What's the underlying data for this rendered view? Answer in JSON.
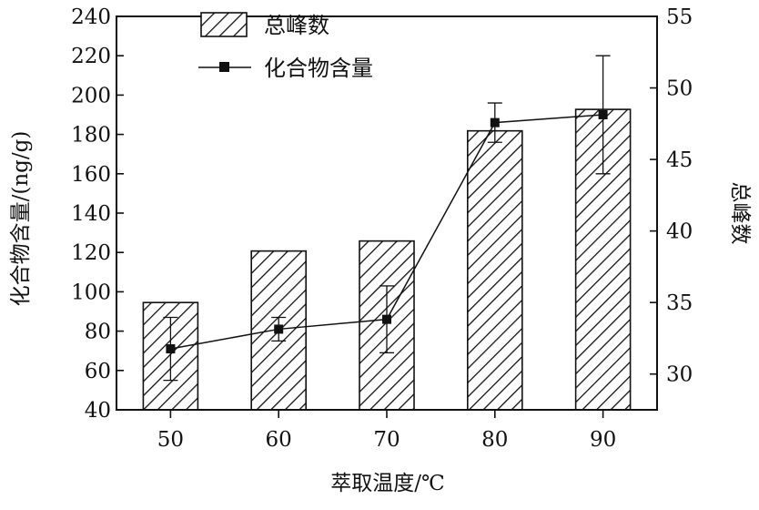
{
  "chart_data": {
    "type": "bar",
    "xlabel": "萃取温度/℃",
    "ylabel_left": "化合物含量/(ng/g)",
    "ylabel_right": "总峰数",
    "categories": [
      "50",
      "60",
      "70",
      "80",
      "90"
    ],
    "ylim_left": [
      40,
      240
    ],
    "yticks_left": [
      40,
      60,
      80,
      100,
      120,
      140,
      160,
      180,
      200,
      220,
      240
    ],
    "ylim_right": [
      27.5,
      55
    ],
    "yticks_right": [
      30,
      35,
      40,
      45,
      50,
      55
    ],
    "legend_position": "top-center",
    "grid": false,
    "series": [
      {
        "name": "总峰数",
        "kind": "bar",
        "hatch": "diagonal",
        "axis": "right",
        "values": [
          35,
          38.6,
          39.3,
          47,
          48.5
        ]
      },
      {
        "name": "化合物含量",
        "kind": "line",
        "marker": "square",
        "axis": "left",
        "values": [
          71,
          81,
          86,
          186,
          190
        ],
        "error": [
          16,
          6,
          17,
          10,
          30
        ]
      }
    ]
  }
}
